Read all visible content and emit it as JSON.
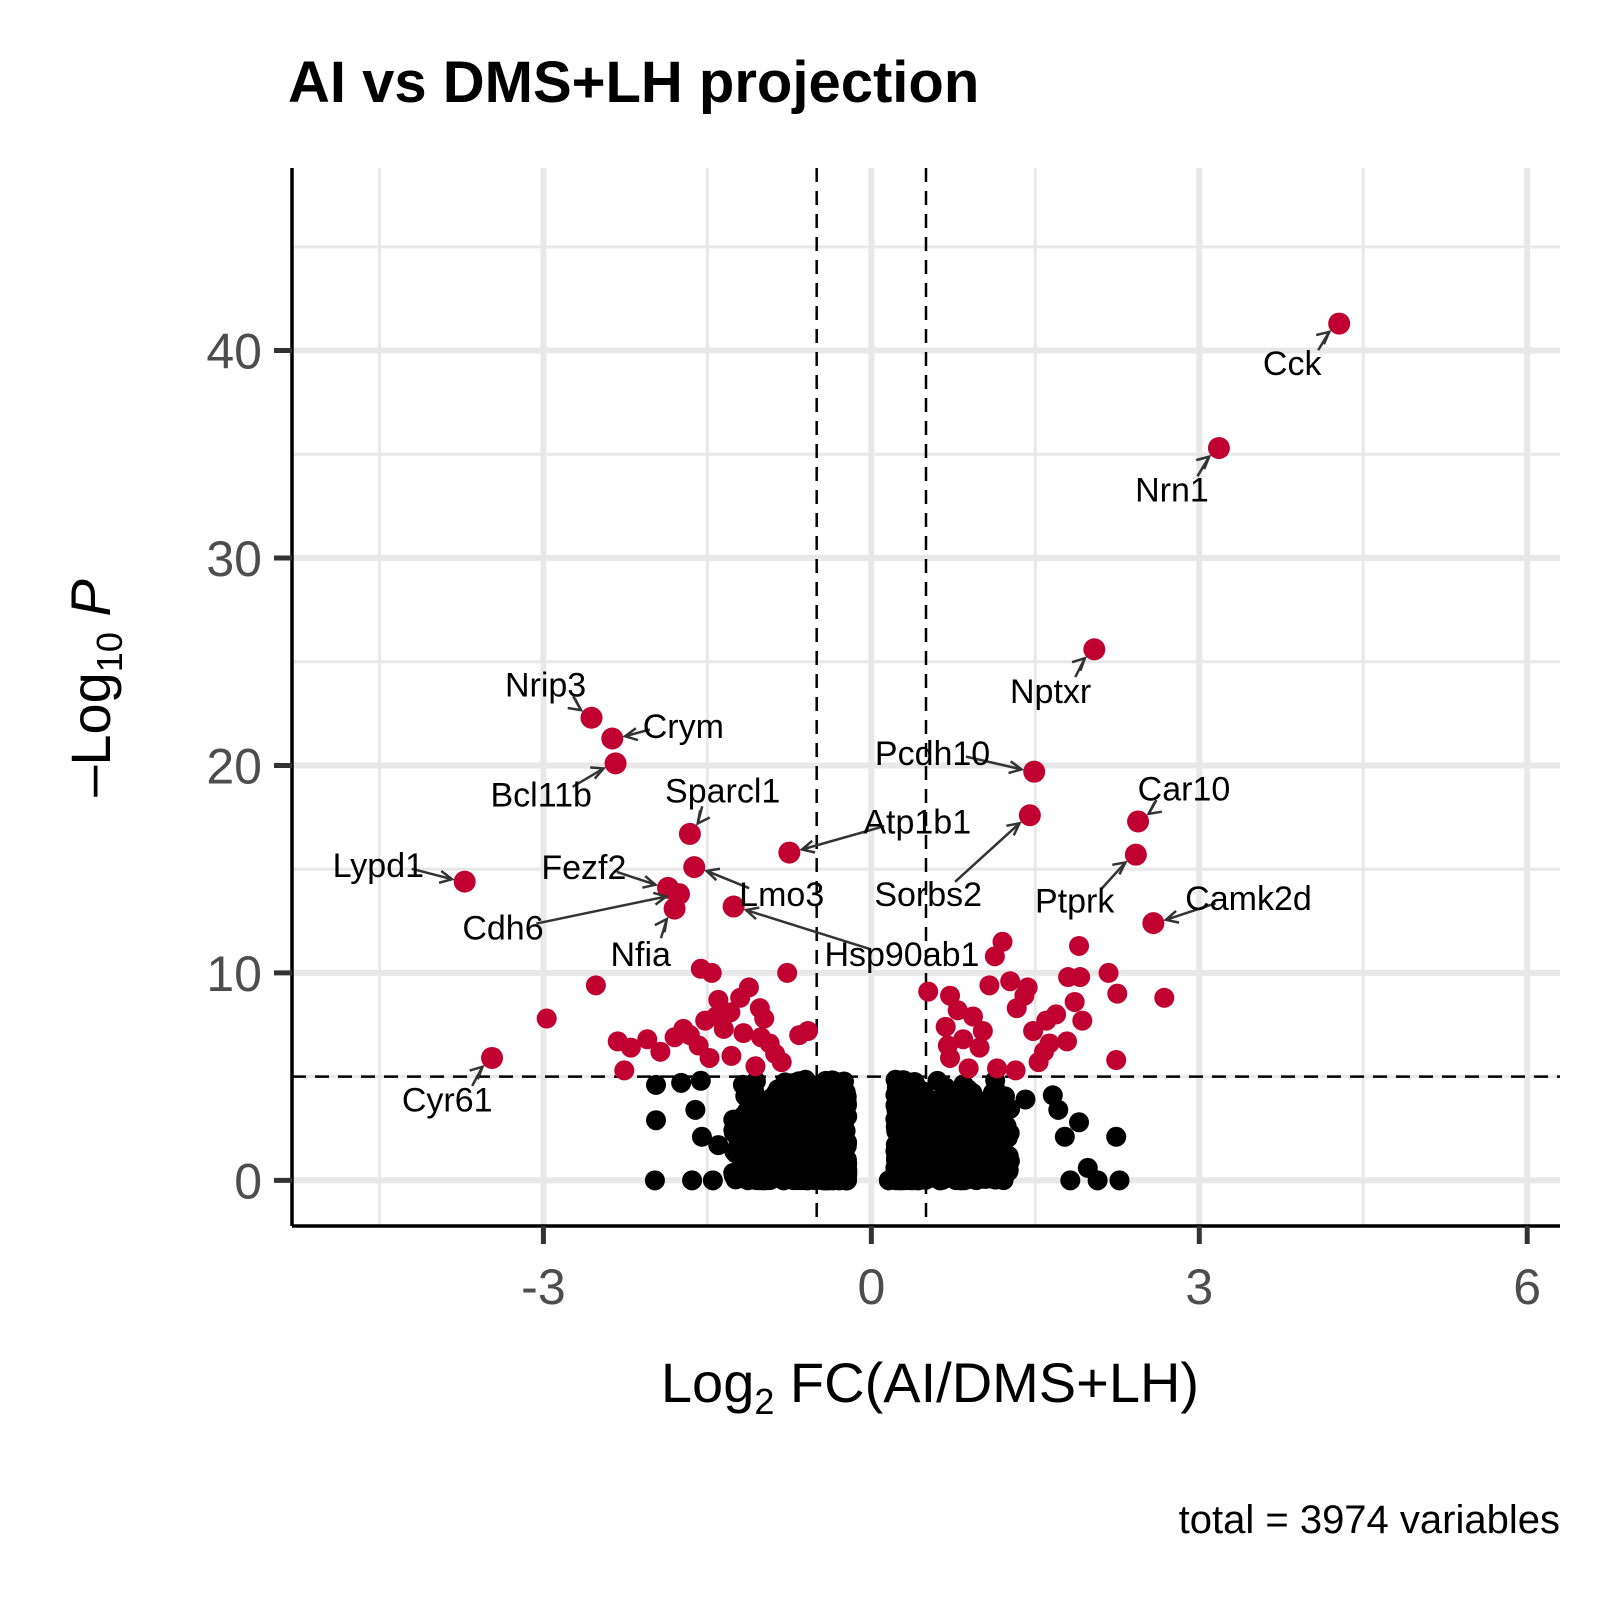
{
  "chart_data": {
    "type": "scatter",
    "title": "AI vs DMS+LH projection",
    "caption": "total = 3974 variables",
    "xlabel": {
      "prefix": "Log",
      "sub": "2",
      "suffix": " FC(AI/DMS+LH)"
    },
    "ylabel": {
      "prefix": "–Log",
      "sub": "10",
      "suffix": " P"
    },
    "xlim": [
      -5.3,
      6.3
    ],
    "ylim": [
      -2.2,
      48.8
    ],
    "x_ticks": [
      -3,
      0,
      3,
      6
    ],
    "x_tick_labels": [
      "-3",
      "0",
      "3",
      "6"
    ],
    "y_ticks": [
      0,
      10,
      20,
      30,
      40
    ],
    "y_tick_labels": [
      "0",
      "10",
      "20",
      "30",
      "40"
    ],
    "x_minor_grid": [
      -4.5,
      -1.5,
      1.5,
      4.5
    ],
    "y_minor_grid": [
      5,
      15,
      25,
      35,
      45
    ],
    "fc_cutoff": 0.5,
    "p_cutoff": 5,
    "grid": true,
    "legend": "none",
    "colors": {
      "significant": "#c00031",
      "not_significant": "#000000",
      "grid": "#e8e8e8",
      "axis": "#000000"
    },
    "labeled_genes": [
      {
        "gene": "Cck",
        "x": 4.28,
        "y": 41.3,
        "label_x": 3.85,
        "label_y": 39.4
      },
      {
        "gene": "Nrn1",
        "x": 3.18,
        "y": 35.3,
        "label_x": 2.75,
        "label_y": 33.3
      },
      {
        "gene": "Nptxr",
        "x": 2.04,
        "y": 25.6,
        "label_x": 1.64,
        "label_y": 23.6
      },
      {
        "gene": "Nrip3",
        "x": -2.56,
        "y": 22.3,
        "label_x": -2.98,
        "label_y": 23.9
      },
      {
        "gene": "Crym",
        "x": -2.37,
        "y": 21.3,
        "label_x": -1.72,
        "label_y": 21.9
      },
      {
        "gene": "Bcl11b",
        "x": -2.34,
        "y": 20.1,
        "label_x": -3.02,
        "label_y": 18.6
      },
      {
        "gene": "Pcdh10",
        "x": 1.49,
        "y": 19.7,
        "label_x": 0.56,
        "label_y": 20.6
      },
      {
        "gene": "Sparcl1",
        "x": -1.66,
        "y": 16.7,
        "label_x": -1.36,
        "label_y": 18.8
      },
      {
        "gene": "Atp1b1",
        "x": -0.75,
        "y": 15.8,
        "label_x": 0.42,
        "label_y": 17.3
      },
      {
        "gene": "Car10",
        "x": 2.44,
        "y": 17.3,
        "label_x": 2.86,
        "label_y": 18.9
      },
      {
        "gene": "Lypd1",
        "x": -3.72,
        "y": 14.4,
        "label_x": -4.51,
        "label_y": 15.2
      },
      {
        "gene": "Fezf2",
        "x": -1.86,
        "y": 14.1,
        "label_x": -2.63,
        "label_y": 15.1
      },
      {
        "gene": "Lmo3",
        "x": -1.62,
        "y": 15.1,
        "label_x": -0.82,
        "label_y": 13.8
      },
      {
        "gene": "Sorbs2",
        "x": 1.45,
        "y": 17.6,
        "label_x": 0.52,
        "label_y": 13.8
      },
      {
        "gene": "Ptprk",
        "x": 2.42,
        "y": 15.7,
        "label_x": 1.86,
        "label_y": 13.5
      },
      {
        "gene": "Camk2d",
        "x": 2.58,
        "y": 12.4,
        "label_x": 3.45,
        "label_y": 13.6
      },
      {
        "gene": "Cdh6",
        "x": -1.76,
        "y": 13.8,
        "label_x": -3.37,
        "label_y": 12.2
      },
      {
        "gene": "Nfia",
        "x": -1.8,
        "y": 13.1,
        "label_x": -2.11,
        "label_y": 10.9
      },
      {
        "gene": "Hsp90ab1",
        "x": -1.26,
        "y": 13.2,
        "label_x": 0.28,
        "label_y": 10.9
      },
      {
        "gene": "Cyr61",
        "x": -3.47,
        "y": 5.9,
        "label_x": -3.88,
        "label_y": 3.9
      }
    ],
    "other_significant": [
      [
        -2.52,
        9.4
      ],
      [
        -2.97,
        7.8
      ],
      [
        -2.32,
        6.7
      ],
      [
        -2.26,
        5.3
      ],
      [
        -2.05,
        6.8
      ],
      [
        -1.93,
        6.2
      ],
      [
        -1.66,
        7.0
      ],
      [
        -1.56,
        10.2
      ],
      [
        -1.46,
        10.0
      ],
      [
        -1.4,
        8.7
      ],
      [
        -1.52,
        7.7
      ],
      [
        -1.35,
        7.3
      ],
      [
        -1.2,
        8.8
      ],
      [
        -1.12,
        9.3
      ],
      [
        -1.02,
        8.3
      ],
      [
        -0.98,
        7.8
      ],
      [
        -0.93,
        6.6
      ],
      [
        -1.28,
        6.0
      ],
      [
        -1.06,
        5.5
      ],
      [
        -0.82,
        5.7
      ],
      [
        -0.77,
        10.0
      ],
      [
        -0.66,
        7.0
      ],
      [
        -0.58,
        7.2
      ],
      [
        -1.48,
        5.9
      ],
      [
        -1.58,
        6.5
      ],
      [
        -1.42,
        7.9
      ],
      [
        -1.29,
        8.1
      ],
      [
        -1.17,
        7.1
      ],
      [
        -1.01,
        6.9
      ],
      [
        -0.88,
        6.1
      ],
      [
        -2.2,
        6.4
      ],
      [
        -1.8,
        6.9
      ],
      [
        -1.72,
        7.3
      ],
      [
        0.52,
        9.1
      ],
      [
        0.72,
        8.9
      ],
      [
        0.79,
        8.2
      ],
      [
        0.68,
        7.4
      ],
      [
        0.84,
        6.8
      ],
      [
        0.72,
        5.9
      ],
      [
        0.89,
        5.4
      ],
      [
        0.99,
        6.4
      ],
      [
        1.08,
        9.4
      ],
      [
        1.13,
        10.8
      ],
      [
        1.2,
        11.5
      ],
      [
        1.27,
        9.6
      ],
      [
        1.43,
        9.3
      ],
      [
        1.33,
        8.3
      ],
      [
        1.48,
        7.2
      ],
      [
        1.6,
        7.7
      ],
      [
        1.58,
        6.2
      ],
      [
        1.69,
        8.0
      ],
      [
        1.8,
        9.8
      ],
      [
        1.9,
        11.3
      ],
      [
        1.91,
        9.8
      ],
      [
        1.86,
        8.6
      ],
      [
        1.93,
        7.7
      ],
      [
        1.79,
        6.7
      ],
      [
        2.17,
        10.0
      ],
      [
        2.25,
        9.0
      ],
      [
        2.24,
        5.8
      ],
      [
        2.68,
        8.8
      ],
      [
        1.15,
        5.4
      ],
      [
        1.32,
        5.3
      ],
      [
        1.53,
        5.7
      ],
      [
        1.63,
        6.6
      ],
      [
        1.02,
        7.2
      ],
      [
        0.93,
        7.9
      ],
      [
        0.7,
        6.5
      ],
      [
        1.4,
        8.9
      ]
    ],
    "nonsig_outliers": [
      [
        -1.97,
        4.6
      ],
      [
        -1.74,
        4.7
      ],
      [
        -1.56,
        4.8
      ],
      [
        -1.97,
        2.9
      ],
      [
        -1.61,
        3.4
      ],
      [
        -1.98,
        0.0
      ],
      [
        -1.64,
        0.0
      ],
      [
        -1.45,
        0.0
      ],
      [
        -1.55,
        2.1
      ],
      [
        -1.4,
        1.7
      ],
      [
        -0.26,
        2.4
      ],
      [
        -0.32,
        0.9
      ],
      [
        0.22,
        0.6
      ],
      [
        0.36,
        2.9
      ],
      [
        0.6,
        3.7
      ],
      [
        0.44,
        1.6
      ],
      [
        1.41,
        3.9
      ],
      [
        1.66,
        4.1
      ],
      [
        1.71,
        3.4
      ],
      [
        1.77,
        2.1
      ],
      [
        1.9,
        2.8
      ],
      [
        1.98,
        0.6
      ],
      [
        2.07,
        0.0
      ],
      [
        2.24,
        2.1
      ],
      [
        2.27,
        0.0
      ],
      [
        1.82,
        0.0
      ],
      [
        0.16,
        0.0
      ]
    ]
  }
}
